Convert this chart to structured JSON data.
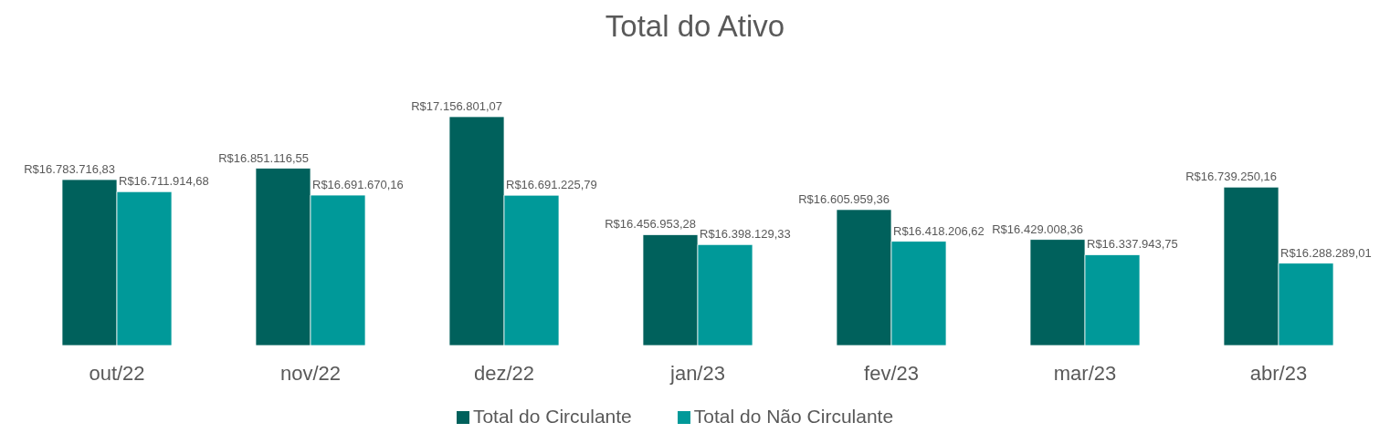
{
  "chart_data": {
    "type": "bar",
    "title": "Total do Ativo",
    "categories": [
      "out/22",
      "nov/22",
      "dez/22",
      "jan/23",
      "fev/23",
      "mar/23",
      "abr/23"
    ],
    "series": [
      {
        "name": "Total do Circulante",
        "color": "#00615c",
        "values": [
          16783716.83,
          16851116.55,
          17156801.07,
          16456953.28,
          16605959.36,
          16429008.36,
          16739250.16
        ],
        "value_labels": [
          "R$16.783.716,83",
          "R$16.851.116,55",
          "R$17.156.801,07",
          "R$16.456.953,28",
          "R$16.605.959,36",
          "R$16.429.008,36",
          "R$16.739.250,16"
        ]
      },
      {
        "name": "Total do Não Circulante",
        "color": "#009999",
        "values": [
          16711914.68,
          16691670.16,
          16691225.79,
          16398129.33,
          16418206.62,
          16337943.75,
          16288289.01
        ],
        "value_labels": [
          "R$16.711.914,68",
          "R$16.691.670,16",
          "R$16.691.225,79",
          "R$16.398.129,33",
          "R$16.418.206,62",
          "R$16.337.943,75",
          "R$16.288.289,01"
        ]
      }
    ],
    "ylim": [
      15800000,
      17156801.07
    ],
    "tick_labels": "x",
    "legend": "bottom"
  }
}
